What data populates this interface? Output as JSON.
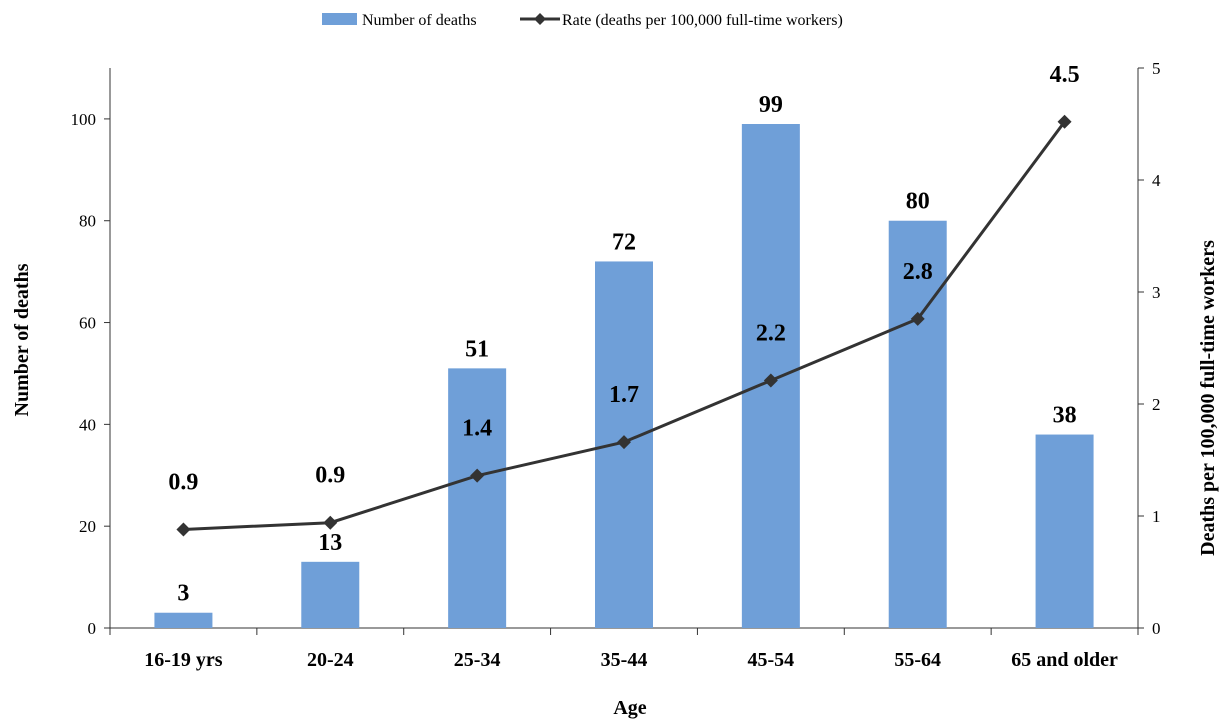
{
  "chart_data": {
    "type": "bar+line",
    "categories": [
      "16-19 yrs",
      "20-24",
      "25-34",
      "35-44",
      "45-54",
      "55-64",
      "65 and older"
    ],
    "series": [
      {
        "name": "Number of deaths",
        "type": "bar",
        "axis": "left",
        "color": "#6f9fd8",
        "values": [
          3,
          13,
          51,
          72,
          99,
          80,
          38
        ],
        "labels": [
          "3",
          "13",
          "51",
          "72",
          "99",
          "80",
          "38"
        ]
      },
      {
        "name": "Rate (deaths per 100,000 full-time workers)",
        "type": "line",
        "axis": "right",
        "color": "#333333",
        "values": [
          0.88,
          0.94,
          1.36,
          1.66,
          2.21,
          2.76,
          4.52
        ],
        "labels": [
          "0.9",
          "0.9",
          "1.4",
          "1.7",
          "2.2",
          "2.8",
          "4.5"
        ]
      }
    ],
    "xlabel": "Age",
    "ylabel": "Number of deaths",
    "y2label": "Deaths per 100,000 full-time workers",
    "ylim": [
      0,
      110
    ],
    "y2lim": [
      0,
      5
    ],
    "yticks": [
      "0",
      "20",
      "40",
      "60",
      "80",
      "100"
    ],
    "y2ticks": [
      "0",
      "1",
      "2",
      "3",
      "4",
      "5"
    ],
    "grid": false,
    "legend_position": "top-center"
  }
}
